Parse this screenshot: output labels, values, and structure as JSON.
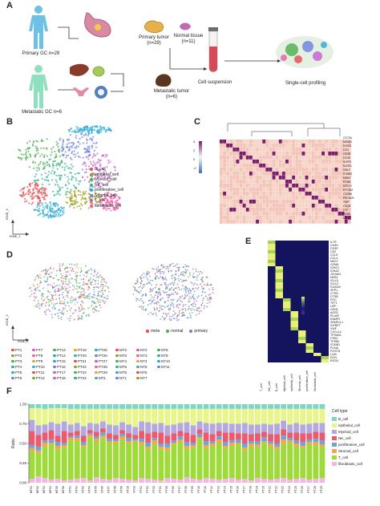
{
  "panel_letters": [
    "A",
    "B",
    "C",
    "D",
    "E",
    "F"
  ],
  "panelA": {
    "primary_label": "Primary GC n=29",
    "metastatic_label": "Metastatic GC n=6",
    "primary_tumor_label": "Primary tumor",
    "primary_tumor_n": "(n=29)",
    "normal_tissue_label": "Normal tissue",
    "normal_tissue_n": "(n=11)",
    "metastatic_tumor_label": "Metastatic tumor",
    "metastatic_tumor_n": "(n=6)",
    "cell_suspension_label": "Cell suspension",
    "profiling_label": "Single-cell profiling"
  },
  "panelB": {
    "ylabel": "tSNE_2",
    "xlabel": "tSNE_1",
    "legend": [
      {
        "name": "B_cell",
        "color": "#e8484f"
      },
      {
        "name": "epithelial_cell",
        "color": "#9c9c1c"
      },
      {
        "name": "Myeloid_cell",
        "color": "#4cae4c"
      },
      {
        "name": "NK_cell",
        "color": "#2bb38e"
      },
      {
        "name": "proliferative_cell",
        "color": "#28a9d8"
      },
      {
        "name": "Stromal_cell",
        "color": "#6d7fe0"
      },
      {
        "name": "T_cell",
        "color": "#c65bd6"
      },
      {
        "name": "fibroblasts_cell",
        "color": "#ee5aa8"
      }
    ]
  },
  "panelC": {
    "genes": [
      "CD79A",
      "MS4A1",
      "IGHG1",
      "CD3",
      "CD3D",
      "CD3E",
      "KLRF1",
      "KLRD1",
      "GNLY",
      "STMN1",
      "MKI67",
      "PCNA",
      "KRT19",
      "EPCAM",
      "CLDN4",
      "PECAM1",
      "VWF",
      "C1QB",
      "LYZ",
      "CD68",
      "DCN"
    ],
    "scale_ticks": [
      "4",
      "2",
      "0",
      "-2"
    ]
  },
  "panelD": {
    "ylabel": "tSNE_2",
    "xlabel": "tSNE_1",
    "samples": [
      "PT1",
      "PT2",
      "PT3",
      "PT4",
      "PT5",
      "PT6",
      "PT7",
      "PT8",
      "PT9",
      "PT10",
      "PT11",
      "PT12",
      "PT13",
      "PT14",
      "PT15",
      "PT16",
      "PT17",
      "PT18",
      "PT19",
      "PT20",
      "PT21",
      "PT22",
      "PT23",
      "PT24",
      "PT25",
      "PT26",
      "PT27",
      "PT28",
      "PT29",
      "MT1",
      "MT2",
      "MT3",
      "MT4",
      "MT5",
      "MT6",
      "NT1",
      "NT2",
      "NT3",
      "NT4",
      "NT5",
      "NT6",
      "NT7",
      "NT8",
      "NT9",
      "NT10",
      "NT11"
    ],
    "group_legend": [
      {
        "name": "meta",
        "color": "#e8484f"
      },
      {
        "name": "normal",
        "color": "#4cae4c"
      },
      {
        "name": "primary",
        "color": "#6d7fe0"
      }
    ]
  },
  "panelE": {
    "genes": [
      "IL7R",
      "CD3D",
      "CD3E",
      "CD2",
      "CCL5",
      "CCL4",
      "NKG7",
      "GZMA",
      "IGHG1",
      "IGHA2",
      "JCHAIN",
      "MZB1",
      "IGLL5",
      "IGLC2",
      "S100A9",
      "SPP1",
      "CTSD",
      "CTSB",
      "PGC",
      "TFF1",
      "LIPF",
      "GKN1",
      "AGR2",
      "PLVAP",
      "RAMP2",
      "SPARCL1",
      "IGFBP7",
      "VWF",
      "CXCL14",
      "TPSAB1",
      "CPA3",
      "TPSB2",
      "STMN1",
      "PCNA",
      "POSTN",
      "LUM",
      "DCN",
      "RGS5"
    ],
    "cell_types": [
      "T_cell",
      "NK_cell",
      "B_cell",
      "Myeloid_cell",
      "epithelial_cell",
      "Stromal_cell",
      "proliferative_cell",
      "fibroblasts_cell"
    ],
    "legend_title": "expression",
    "legend_ticks": [
      "2",
      "1",
      "0",
      "-1"
    ]
  },
  "panelF": {
    "ylabel": "Ratio",
    "yticks": [
      "0.00",
      "0.25",
      "0.50",
      "0.75",
      "1.00"
    ],
    "legend_title": "Cell type",
    "legend": [
      {
        "name": "B_cell",
        "color": "#7fd6c6"
      },
      {
        "name": "epithelial_cell",
        "color": "#e9f58a"
      },
      {
        "name": "Myeloid_cell",
        "color": "#b3a8e0"
      },
      {
        "name": "NK_cell",
        "color": "#ec5a6e"
      },
      {
        "name": "proliferative_cell",
        "color": "#6fa5d6"
      },
      {
        "name": "Stromal_cell",
        "color": "#f3a64a"
      },
      {
        "name": "T_cell",
        "color": "#9edb3a"
      },
      {
        "name": "fibroblasts_cell",
        "color": "#f4b6e4"
      }
    ]
  },
  "chart_data": {
    "type": "bar",
    "stacked": true,
    "categories": [
      "MT01",
      "MT02",
      "MT03",
      "MT04",
      "MT05",
      "MT06",
      "NT01",
      "NT02",
      "NT03",
      "NT04",
      "NT05",
      "NT06",
      "NT07",
      "NT08",
      "NT09",
      "NT10",
      "NT11",
      "PT01",
      "PT02",
      "PT03",
      "PT04",
      "PT05",
      "PT06",
      "PT07",
      "PT08",
      "PT09",
      "PT10",
      "PT11",
      "PT12",
      "PT13",
      "PT14",
      "PT15",
      "PT16",
      "PT17",
      "PT18",
      "PT19",
      "PT20",
      "PT21",
      "PT22",
      "PT23",
      "PT24",
      "PT25",
      "PT26",
      "PT27",
      "PT28",
      "PT29"
    ],
    "ylabel": "Ratio",
    "ylim": [
      0,
      1
    ],
    "legend_position": "right",
    "series": [
      {
        "name": "fibroblasts_cell",
        "values": [
          0.05,
          0.08,
          0.06,
          0.04,
          0.05,
          0.03,
          0.04,
          0.05,
          0.06,
          0.03,
          0.07,
          0.05,
          0.04,
          0.06,
          0.05,
          0.04,
          0.03,
          0.06,
          0.05,
          0.04,
          0.03,
          0.06,
          0.05,
          0.04,
          0.07,
          0.05,
          0.04,
          0.06,
          0.05,
          0.04,
          0.05,
          0.06,
          0.04,
          0.05,
          0.03,
          0.06,
          0.05,
          0.04,
          0.05,
          0.06,
          0.04,
          0.05,
          0.06,
          0.04,
          0.05,
          0.06
        ]
      },
      {
        "name": "T_cell",
        "values": [
          0.35,
          0.3,
          0.4,
          0.45,
          0.38,
          0.42,
          0.5,
          0.48,
          0.4,
          0.55,
          0.45,
          0.52,
          0.47,
          0.44,
          0.5,
          0.46,
          0.49,
          0.42,
          0.38,
          0.45,
          0.4,
          0.35,
          0.44,
          0.48,
          0.36,
          0.4,
          0.52,
          0.38,
          0.42,
          0.46,
          0.39,
          0.41,
          0.45,
          0.37,
          0.43,
          0.4,
          0.46,
          0.42,
          0.38,
          0.44,
          0.47,
          0.41,
          0.39,
          0.45,
          0.43,
          0.4
        ]
      },
      {
        "name": "Stromal_cell",
        "values": [
          0.04,
          0.03,
          0.05,
          0.02,
          0.04,
          0.03,
          0.03,
          0.04,
          0.02,
          0.03,
          0.04,
          0.03,
          0.02,
          0.03,
          0.04,
          0.03,
          0.02,
          0.04,
          0.03,
          0.05,
          0.03,
          0.04,
          0.02,
          0.03,
          0.04,
          0.03,
          0.02,
          0.04,
          0.03,
          0.05,
          0.03,
          0.04,
          0.02,
          0.03,
          0.04,
          0.03,
          0.02,
          0.04,
          0.03,
          0.05,
          0.03,
          0.04,
          0.02,
          0.03,
          0.04,
          0.03
        ]
      },
      {
        "name": "proliferative_cell",
        "values": [
          0.04,
          0.05,
          0.03,
          0.04,
          0.05,
          0.03,
          0.02,
          0.03,
          0.04,
          0.02,
          0.03,
          0.04,
          0.03,
          0.02,
          0.03,
          0.04,
          0.02,
          0.04,
          0.05,
          0.03,
          0.04,
          0.05,
          0.03,
          0.04,
          0.05,
          0.03,
          0.04,
          0.05,
          0.03,
          0.04,
          0.05,
          0.03,
          0.04,
          0.05,
          0.03,
          0.04,
          0.05,
          0.03,
          0.04,
          0.05,
          0.03,
          0.04,
          0.05,
          0.03,
          0.04,
          0.05
        ]
      },
      {
        "name": "NK_cell",
        "values": [
          0.18,
          0.15,
          0.1,
          0.12,
          0.08,
          0.15,
          0.05,
          0.06,
          0.08,
          0.04,
          0.06,
          0.05,
          0.07,
          0.06,
          0.05,
          0.06,
          0.05,
          0.1,
          0.12,
          0.08,
          0.14,
          0.1,
          0.09,
          0.07,
          0.12,
          0.1,
          0.06,
          0.11,
          0.09,
          0.07,
          0.12,
          0.1,
          0.08,
          0.13,
          0.09,
          0.1,
          0.07,
          0.09,
          0.12,
          0.08,
          0.07,
          0.1,
          0.11,
          0.08,
          0.09,
          0.1
        ]
      },
      {
        "name": "Myeloid_cell",
        "values": [
          0.14,
          0.12,
          0.1,
          0.1,
          0.15,
          0.12,
          0.1,
          0.1,
          0.12,
          0.09,
          0.1,
          0.09,
          0.11,
          0.12,
          0.1,
          0.11,
          0.1,
          0.12,
          0.14,
          0.1,
          0.12,
          0.13,
          0.11,
          0.1,
          0.13,
          0.12,
          0.1,
          0.12,
          0.13,
          0.1,
          0.12,
          0.11,
          0.12,
          0.13,
          0.12,
          0.11,
          0.1,
          0.12,
          0.13,
          0.11,
          0.1,
          0.12,
          0.11,
          0.12,
          0.11,
          0.12
        ]
      },
      {
        "name": "epithelial_cell",
        "values": [
          0.15,
          0.22,
          0.2,
          0.18,
          0.2,
          0.17,
          0.2,
          0.18,
          0.22,
          0.18,
          0.19,
          0.16,
          0.2,
          0.21,
          0.17,
          0.2,
          0.23,
          0.16,
          0.17,
          0.19,
          0.18,
          0.21,
          0.2,
          0.18,
          0.17,
          0.21,
          0.16,
          0.18,
          0.19,
          0.18,
          0.18,
          0.19,
          0.19,
          0.18,
          0.2,
          0.2,
          0.19,
          0.2,
          0.19,
          0.15,
          0.2,
          0.18,
          0.2,
          0.19,
          0.18,
          0.18
        ]
      },
      {
        "name": "B_cell",
        "values": [
          0.05,
          0.05,
          0.06,
          0.05,
          0.05,
          0.05,
          0.06,
          0.06,
          0.06,
          0.06,
          0.06,
          0.06,
          0.06,
          0.06,
          0.06,
          0.06,
          0.06,
          0.06,
          0.06,
          0.06,
          0.06,
          0.06,
          0.06,
          0.06,
          0.06,
          0.06,
          0.06,
          0.06,
          0.06,
          0.06,
          0.06,
          0.06,
          0.06,
          0.06,
          0.06,
          0.06,
          0.06,
          0.06,
          0.06,
          0.06,
          0.06,
          0.06,
          0.06,
          0.06,
          0.06,
          0.06
        ]
      }
    ]
  }
}
